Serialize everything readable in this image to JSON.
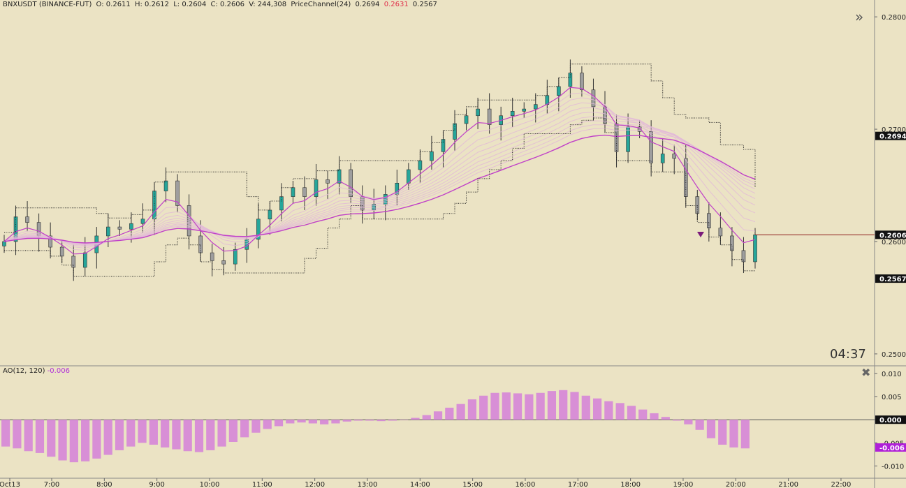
{
  "header": {
    "symbol": "BNXUSDT (BINANCE-FUT)",
    "open": "O: 0.2611",
    "high": "H: 0.2612",
    "low": "L: 0.2604",
    "close": "C: 0.2606",
    "volume": "V: 244,308",
    "indicator": "PriceChannel(24)",
    "pc_upper": "0.2694",
    "pc_mid": "0.2631",
    "pc_lower": "0.2567"
  },
  "countdown": "04:37",
  "icons": {
    "expand": "double-chevron-right-icon",
    "close": "close-x-icon"
  },
  "colors": {
    "background": "#ebe3c4",
    "up_candle": "#26a69a",
    "down_candle": "#9e9e9e",
    "ma_line": "#c040c8",
    "ao_bar": "#d88fd6",
    "price_line": "#8b1a1a",
    "channel": "#222222"
  },
  "chart_data": [
    {
      "type": "candlestick",
      "symbol": "BNXUSDT",
      "x_ticks": [
        "Oct13",
        "7:00",
        "8:00",
        "9:00",
        "10:00",
        "11:00",
        "12:00",
        "13:00",
        "14:00",
        "15:00",
        "16:00",
        "17:00",
        "18:00",
        "19:00",
        "20:00",
        "21:00",
        "22:00"
      ],
      "y_ticks": [
        "0.2800",
        "0.2700",
        "0.2600",
        "0.2500"
      ],
      "ylim": [
        0.249,
        0.2815
      ],
      "price_labels": {
        "upper": "0.2694",
        "last": "0.2606",
        "lower": "0.2567"
      },
      "close_series": [
        0.26,
        0.2622,
        0.2617,
        0.2605,
        0.2595,
        0.2587,
        0.2577,
        0.259,
        0.2605,
        0.2613,
        0.2611,
        0.2616,
        0.262,
        0.2645,
        0.2654,
        0.2632,
        0.2605,
        0.259,
        0.2583,
        0.258,
        0.2593,
        0.2602,
        0.262,
        0.2628,
        0.264,
        0.2648,
        0.264,
        0.2655,
        0.2652,
        0.2664,
        0.264,
        0.2628,
        0.2633,
        0.2642,
        0.2652,
        0.2664,
        0.2672,
        0.268,
        0.2691,
        0.2705,
        0.2712,
        0.2718,
        0.2704,
        0.2712,
        0.2716,
        0.2718,
        0.2722,
        0.273,
        0.2738,
        0.275,
        0.2735,
        0.272,
        0.2705,
        0.268,
        0.2702,
        0.2698,
        0.267,
        0.2678,
        0.2674,
        0.264,
        0.2625,
        0.2612,
        0.2605,
        0.2592,
        0.2582,
        0.2606
      ]
    },
    {
      "type": "bar",
      "title": "AO(12, 120)",
      "last_value": "-0.006",
      "y_ticks": [
        "0.010",
        "0.005",
        "0.000",
        "-0.005",
        "-0.010"
      ],
      "value_label": "-0.006",
      "zero_label": "0.000",
      "ylim": [
        -0.0125,
        0.0115
      ],
      "values": [
        -0.0058,
        -0.0062,
        -0.0068,
        -0.0072,
        -0.008,
        -0.0088,
        -0.0092,
        -0.009,
        -0.0084,
        -0.0076,
        -0.0066,
        -0.0058,
        -0.005,
        -0.0054,
        -0.006,
        -0.0064,
        -0.0068,
        -0.007,
        -0.0066,
        -0.0058,
        -0.0048,
        -0.0038,
        -0.0028,
        -0.002,
        -0.0014,
        -0.0008,
        -0.0006,
        -0.0008,
        -0.001,
        -0.0008,
        -0.0004,
        -0.0002,
        -0.0002,
        -0.0003,
        -0.0002,
        0.0,
        0.0004,
        0.001,
        0.0018,
        0.0026,
        0.0034,
        0.0044,
        0.0052,
        0.0058,
        0.0059,
        0.0057,
        0.0055,
        0.0058,
        0.0062,
        0.0064,
        0.006,
        0.0052,
        0.0046,
        0.004,
        0.0036,
        0.003,
        0.0022,
        0.0014,
        0.0006,
        -0.0002,
        -0.001,
        -0.0022,
        -0.004,
        -0.0054,
        -0.006,
        -0.0062
      ]
    }
  ]
}
